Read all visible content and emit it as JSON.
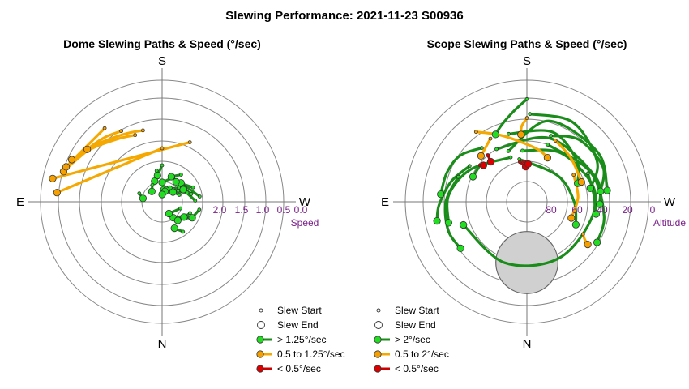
{
  "title": "Slewing Performance: 2021-11-23 S00936",
  "colors": {
    "fast": "#1a8c1a",
    "fast_fill": "#22dd22",
    "medium": "#f5a800",
    "medium_fill": "#f5a000",
    "slow": "#cc0000",
    "slow_fill": "#dd0000",
    "ring": "#888888",
    "axis": "#777777",
    "tick_text": "#7a1f8a",
    "obstruction": "#d0d0d0"
  },
  "chart_data": [
    {
      "type": "polar-path",
      "title": "Dome Slewing Paths & Speed (°/sec)",
      "cardinals": {
        "top": "S",
        "bottom": "N",
        "left": "E",
        "right": "W"
      },
      "radial_label": "Speed",
      "radial_ticks": [
        "2.0",
        "1.5",
        "1.0",
        "0.5",
        "0.0"
      ],
      "legend": [
        {
          "label": "Slew Start",
          "kind": "start"
        },
        {
          "label": "Slew End",
          "kind": "end"
        },
        {
          "label": "> 1.25°/sec",
          "kind": "fast"
        },
        {
          "label": "0.5 to 1.25°/sec",
          "kind": "medium"
        },
        {
          "label": "< 0.5°/sec",
          "kind": "slow"
        }
      ],
      "paths": [
        {
          "c": "medium",
          "start": [
            150,
            0.82
          ],
          "end": [
            125,
            0.62
          ],
          "via": [
            [
              140,
              0.74
            ],
            [
              132,
              0.68
            ]
          ]
        },
        {
          "c": "medium",
          "start": [
            165,
            0.98
          ],
          "end": [
            107,
            0.38
          ],
          "via": [
            [
              150,
              0.9
            ],
            [
              130,
              0.7
            ],
            [
              115,
              0.52
            ]
          ]
        },
        {
          "c": "medium",
          "start": [
            158,
            1.02
          ],
          "end": [
            115,
            0.45
          ],
          "via": [
            [
              145,
              0.92
            ],
            [
              128,
              0.7
            ]
          ]
        },
        {
          "c": "medium",
          "start": [
            142,
            0.58
          ],
          "end": [
            110,
            0.4
          ]
        },
        {
          "c": "medium",
          "start": [
            180,
            1.4
          ],
          "end": [
            95,
            0.33
          ]
        },
        {
          "c": "medium",
          "start": [
            205,
            1.15
          ],
          "end": [
            102,
            0.2
          ]
        },
        {
          "c": "fast",
          "start": [
            170,
            1.85
          ],
          "end": [
            160,
            2.05
          ]
        },
        {
          "c": "fast",
          "start": [
            180,
            1.75
          ],
          "end": [
            170,
            1.95
          ]
        },
        {
          "c": "fast",
          "start": [
            230,
            2.05
          ],
          "end": [
            188,
            2.25
          ]
        },
        {
          "c": "fast",
          "start": [
            240,
            2.0
          ],
          "end": [
            210,
            2.2
          ]
        },
        {
          "c": "fast",
          "start": [
            250,
            1.95
          ],
          "end": [
            200,
            2.25
          ]
        },
        {
          "c": "fast",
          "start": [
            262,
            1.72
          ],
          "end": [
            225,
            1.95
          ]
        },
        {
          "c": "fast",
          "start": [
            245,
            1.8
          ],
          "end": [
            215,
            2.0
          ]
        },
        {
          "c": "fast",
          "start": [
            255,
            1.88
          ],
          "end": [
            238,
            1.98
          ]
        },
        {
          "c": "fast",
          "start": [
            235,
            2.1
          ],
          "end": [
            195,
            2.28
          ]
        },
        {
          "c": "fast",
          "start": [
            222,
            2.15
          ],
          "end": [
            180,
            2.35
          ]
        },
        {
          "c": "fast",
          "start": [
            268,
            1.82
          ],
          "end": [
            240,
            2.0
          ]
        },
        {
          "c": "fast",
          "start": [
            205,
            1.95
          ],
          "end": [
            180,
            2.1
          ]
        },
        {
          "c": "fast",
          "start": [
            215,
            1.82
          ],
          "end": [
            200,
            1.95
          ]
        },
        {
          "c": "fast",
          "start": [
            248,
            2.12
          ],
          "end": [
            228,
            2.2
          ]
        },
        {
          "c": "fast",
          "start": [
            302,
            1.95
          ],
          "end": [
            325,
            2.1
          ]
        },
        {
          "c": "fast",
          "start": [
            300,
            1.85
          ],
          "end": [
            320,
            2.0
          ]
        },
        {
          "c": "fast",
          "start": [
            292,
            1.88
          ],
          "end": [
            305,
            1.95
          ]
        },
        {
          "c": "fast",
          "start": [
            290,
            2.1
          ],
          "end": [
            330,
            2.22
          ]
        },
        {
          "c": "fast",
          "start": [
            282,
            1.72
          ],
          "end": [
            298,
            1.8
          ]
        },
        {
          "c": "fast",
          "start": [
            325,
            1.75
          ],
          "end": [
            335,
            1.9
          ]
        },
        {
          "c": "fast",
          "start": [
            150,
            2.1
          ],
          "end": [
            135,
            2.2
          ]
        },
        {
          "c": "fast",
          "start": [
            110,
            2.0
          ],
          "end": [
            100,
            2.1
          ]
        }
      ]
    },
    {
      "type": "polar-path",
      "title": "Scope Slewing Paths & Speed (°/sec)",
      "cardinals": {
        "top": "S",
        "bottom": "N",
        "left": "E",
        "right": "W"
      },
      "radial_label": "Altitude",
      "radial_ticks": [
        "80",
        "60",
        "40",
        "20",
        "0"
      ],
      "legend": [
        {
          "label": "Slew Start",
          "kind": "start"
        },
        {
          "label": "Slew End",
          "kind": "end"
        },
        {
          "label": "> 2°/sec",
          "kind": "fast"
        },
        {
          "label": "0.5 to 2°/sec",
          "kind": "medium"
        },
        {
          "label": "< 0.5°/sec",
          "kind": "slow"
        }
      ],
      "obstruction": {
        "azimuth": 0,
        "altitude": 45,
        "radius": 23
      },
      "paths": [
        {
          "c": "fast",
          "start": [
            180,
            14
          ],
          "end": [
            155,
            35
          ],
          "via": [
            [
              172,
              22
            ],
            [
              162,
              30
            ]
          ]
        },
        {
          "c": "fast",
          "start": [
            200,
            38
          ],
          "end": [
            262,
            35
          ],
          "via": [
            [
              220,
              30
            ],
            [
              245,
              28
            ]
          ]
        },
        {
          "c": "fast",
          "start": [
            182,
            25
          ],
          "end": [
            258,
            42
          ],
          "via": [
            [
              210,
              22
            ],
            [
              240,
              30
            ]
          ]
        },
        {
          "c": "fast",
          "start": [
            160,
            50
          ],
          "end": [
            262,
            30
          ],
          "via": [
            [
              195,
              28
            ],
            [
              235,
              26
            ]
          ]
        },
        {
          "c": "fast",
          "start": [
            165,
            38
          ],
          "end": [
            250,
            50
          ],
          "via": [
            [
              200,
              35
            ],
            [
              230,
              42
            ]
          ]
        },
        {
          "c": "fast",
          "start": [
            150,
            45
          ],
          "end": [
            272,
            36
          ],
          "via": [
            [
              200,
              40
            ],
            [
              250,
              36
            ]
          ]
        },
        {
          "c": "fast",
          "start": [
            175,
            52
          ],
          "end": [
            280,
            38
          ],
          "via": [
            [
              215,
              46
            ],
            [
              255,
              40
            ]
          ]
        },
        {
          "c": "fast",
          "start": [
            140,
            38
          ],
          "end": [
            95,
            26
          ],
          "via": [
            [
              125,
              30
            ],
            [
              110,
              27
            ]
          ]
        },
        {
          "c": "fast",
          "start": [
            122,
            40
          ],
          "end": [
            78,
            22
          ],
          "via": [
            [
              105,
              32
            ],
            [
              88,
              25
            ]
          ]
        },
        {
          "c": "fast",
          "start": [
            128,
            46
          ],
          "end": [
            115,
            46
          ]
        },
        {
          "c": "fast",
          "start": [
            200,
            45
          ],
          "end": [
            300,
            30
          ],
          "via": [
            [
              245,
              38
            ],
            [
              280,
              32
            ]
          ]
        },
        {
          "c": "fast",
          "start": [
            170,
            58
          ],
          "end": [
            295,
            50
          ],
          "via": [
            [
              230,
              60
            ],
            [
              270,
              55
            ]
          ]
        },
        {
          "c": "fast",
          "start": [
            160,
            55
          ],
          "end": [
            75,
            30
          ],
          "via": [
            [
              120,
              42
            ],
            [
              95,
              32
            ]
          ]
        },
        {
          "c": "fast",
          "start": [
            110,
            36
          ],
          "end": [
            55,
            30
          ],
          "via": [
            [
              90,
              30
            ],
            [
              70,
              28
            ]
          ]
        },
        {
          "c": "fast",
          "start": [
            245,
            40
          ],
          "end": [
            70,
            40
          ],
          "via": [
            [
              280,
              40
            ],
            [
              330,
              42
            ],
            [
              20,
              42
            ]
          ]
        },
        {
          "c": "medium",
          "start": [
            180,
            28
          ],
          "end": [
            175,
            40
          ],
          "via": [
            [
              176,
              34
            ]
          ]
        },
        {
          "c": "medium",
          "start": [
            144,
            26
          ],
          "end": [
            205,
            54
          ],
          "via": [
            [
              160,
              38
            ],
            [
              190,
              50
            ]
          ]
        },
        {
          "c": "medium",
          "start": [
            205,
            40
          ],
          "end": [
            250,
            47
          ],
          "via": [
            [
              225,
              44
            ]
          ]
        },
        {
          "c": "medium",
          "start": [
            150,
            36
          ],
          "end": [
            135,
            42
          ]
        },
        {
          "c": "medium",
          "start": [
            240,
            50
          ],
          "end": [
            290,
            55
          ],
          "via": [
            [
              265,
              52
            ]
          ]
        },
        {
          "c": "medium",
          "start": [
            300,
            42
          ],
          "end": [
            305,
            35
          ],
          "via": [
            [
              303,
              39
            ]
          ]
        },
        {
          "c": "slow",
          "start": [
            170,
            60
          ],
          "end": [
            178,
            64
          ]
        },
        {
          "c": "slow",
          "start": [
            176,
            60
          ],
          "end": [
            182,
            62
          ]
        },
        {
          "c": "slow",
          "start": [
            140,
            45
          ],
          "end": [
            138,
            50
          ]
        },
        {
          "c": "slow",
          "start": [
            128,
            46
          ],
          "end": [
            130,
            48
          ]
        }
      ]
    }
  ]
}
